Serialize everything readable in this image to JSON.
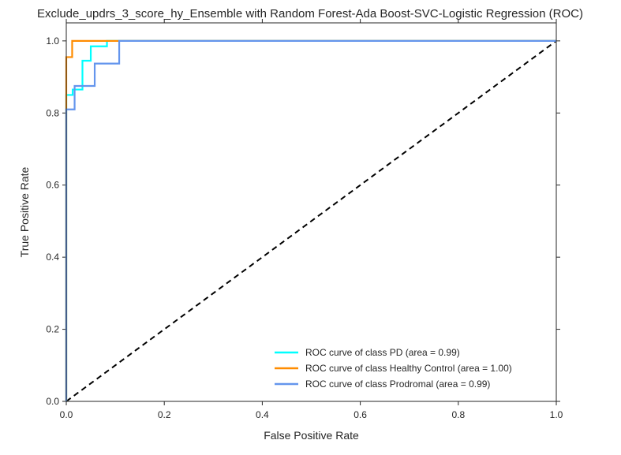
{
  "chart_data": {
    "type": "line",
    "title": "Exclude_updrs_3_score_hy_Ensemble with Random Forest-Ada Boost-SVC-Logistic Regression (ROC)",
    "xlabel": "False Positive Rate",
    "ylabel": "True Positive Rate",
    "xlim": [
      0.0,
      1.0
    ],
    "ylim": [
      0.0,
      1.05
    ],
    "x_ticks": [
      "0.0",
      "0.2",
      "0.4",
      "0.6",
      "0.8",
      "1.0"
    ],
    "y_ticks": [
      "0.0",
      "0.2",
      "0.4",
      "0.6",
      "0.8",
      "1.0"
    ],
    "x_tick_values": [
      0.0,
      0.2,
      0.4,
      0.6,
      0.8,
      1.0
    ],
    "y_tick_values": [
      0.0,
      0.2,
      0.4,
      0.6,
      0.8,
      1.0
    ],
    "grid": false,
    "legend_position": "lower-right",
    "series": [
      {
        "name": "ROC curve of class PD (area = 0.99)",
        "color": "#00ffff",
        "x": [
          0.0,
          0.0,
          0.0,
          0.013,
          0.013,
          0.033,
          0.033,
          0.05,
          0.05,
          0.083,
          0.083,
          1.0
        ],
        "y": [
          0.0,
          0.85,
          0.85,
          0.85,
          0.865,
          0.865,
          0.945,
          0.945,
          0.985,
          0.985,
          1.0,
          1.0
        ]
      },
      {
        "name": "ROC curve of class Healthy Control (area = 1.00)",
        "color": "#ff8c00",
        "x": [
          0.0,
          0.0,
          0.012,
          0.012,
          0.028,
          0.028,
          1.0
        ],
        "y": [
          0.0,
          0.955,
          0.955,
          1.0,
          1.0,
          1.0,
          1.0
        ]
      },
      {
        "name": "ROC curve of class Prodromal (area = 0.99)",
        "color": "#6495ed",
        "x": [
          0.0,
          0.0,
          0.0,
          0.017,
          0.017,
          0.058,
          0.058,
          0.108,
          0.108,
          1.0
        ],
        "y": [
          0.0,
          0.81,
          0.81,
          0.81,
          0.875,
          0.875,
          0.937,
          0.937,
          1.0,
          1.0
        ]
      }
    ],
    "reference_line": {
      "x": [
        0.0,
        1.0
      ],
      "y": [
        0.0,
        1.0
      ],
      "color": "#000000",
      "style": "dashed"
    }
  }
}
